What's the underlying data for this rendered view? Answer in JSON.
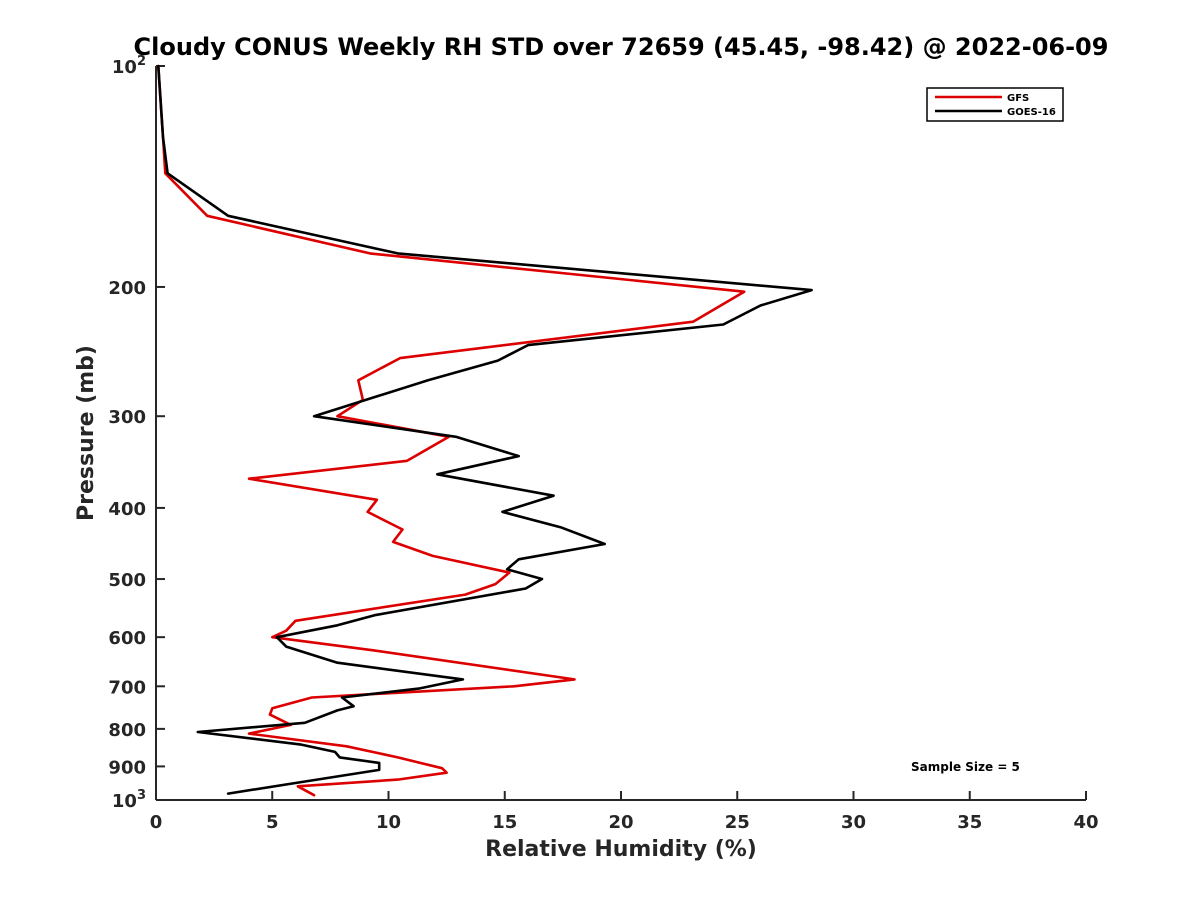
{
  "chart_data": {
    "type": "line",
    "title": "Cloudy CONUS Weekly RH STD over 72659 (45.45, -98.42) @ 2022-06-09",
    "xlabel": "Relative Humidity (%)",
    "ylabel": "Pressure (mb)",
    "xlim": [
      0,
      40
    ],
    "ylim": [
      100,
      1000
    ],
    "y_scale": "log",
    "y_reversed": true,
    "x_ticks": [
      "0",
      "5",
      "10",
      "15",
      "20",
      "25",
      "30",
      "35",
      "40"
    ],
    "y_ticks": [
      {
        "value": 100,
        "label": "10",
        "sup": "2"
      },
      {
        "value": 200,
        "label": "200",
        "sup": ""
      },
      {
        "value": 300,
        "label": "300",
        "sup": ""
      },
      {
        "value": 400,
        "label": "400",
        "sup": ""
      },
      {
        "value": 500,
        "label": "500",
        "sup": ""
      },
      {
        "value": 600,
        "label": "600",
        "sup": ""
      },
      {
        "value": 700,
        "label": "700",
        "sup": ""
      },
      {
        "value": 800,
        "label": "800",
        "sup": ""
      },
      {
        "value": 900,
        "label": "900",
        "sup": ""
      },
      {
        "value": 1000,
        "label": "10",
        "sup": "3"
      }
    ],
    "grid": false,
    "legend_position": "top-right",
    "annotation": "Sample Size = 5",
    "series": [
      {
        "name": "GFS",
        "color": "#dd0000",
        "points": [
          [
            0.1,
            100
          ],
          [
            0.3,
            125
          ],
          [
            0.4,
            140
          ],
          [
            2.2,
            160
          ],
          [
            9.2,
            180
          ],
          [
            25.3,
            203
          ],
          [
            23.1,
            223
          ],
          [
            10.5,
            250
          ],
          [
            8.7,
            268
          ],
          [
            8.9,
            285
          ],
          [
            7.8,
            300
          ],
          [
            12.6,
            320
          ],
          [
            10.8,
            345
          ],
          [
            4.0,
            365
          ],
          [
            9.5,
            390
          ],
          [
            9.1,
            405
          ],
          [
            10.6,
            428
          ],
          [
            10.2,
            445
          ],
          [
            11.9,
            465
          ],
          [
            15.2,
            490
          ],
          [
            14.6,
            508
          ],
          [
            13.3,
            525
          ],
          [
            6.0,
            570
          ],
          [
            5.6,
            588
          ],
          [
            5.0,
            600
          ],
          [
            9.3,
            625
          ],
          [
            18.0,
            685
          ],
          [
            15.4,
            700
          ],
          [
            6.7,
            725
          ],
          [
            5.0,
            750
          ],
          [
            4.9,
            765
          ],
          [
            5.8,
            790
          ],
          [
            4.0,
            812
          ],
          [
            8.2,
            845
          ],
          [
            10.4,
            875
          ],
          [
            12.3,
            905
          ],
          [
            12.5,
            918
          ],
          [
            10.4,
            938
          ],
          [
            6.1,
            958
          ],
          [
            6.8,
            985
          ]
        ]
      },
      {
        "name": "GOES-16",
        "color": "#000000",
        "points": [
          [
            0.1,
            100
          ],
          [
            0.3,
            125
          ],
          [
            0.5,
            140
          ],
          [
            3.1,
            160
          ],
          [
            10.4,
            180
          ],
          [
            28.2,
            202
          ],
          [
            26.0,
            212
          ],
          [
            24.4,
            225
          ],
          [
            16.0,
            240
          ],
          [
            14.7,
            252
          ],
          [
            11.7,
            268
          ],
          [
            6.8,
            300
          ],
          [
            12.9,
            320
          ],
          [
            15.6,
            340
          ],
          [
            12.1,
            360
          ],
          [
            17.1,
            385
          ],
          [
            14.9,
            405
          ],
          [
            17.4,
            425
          ],
          [
            19.3,
            448
          ],
          [
            15.6,
            470
          ],
          [
            15.1,
            485
          ],
          [
            16.6,
            500
          ],
          [
            15.9,
            515
          ],
          [
            9.4,
            560
          ],
          [
            7.8,
            578
          ],
          [
            5.2,
            600
          ],
          [
            5.6,
            618
          ],
          [
            7.8,
            650
          ],
          [
            13.2,
            685
          ],
          [
            11.3,
            705
          ],
          [
            8.0,
            725
          ],
          [
            8.5,
            745
          ],
          [
            7.8,
            755
          ],
          [
            6.4,
            785
          ],
          [
            1.8,
            808
          ],
          [
            6.2,
            840
          ],
          [
            7.7,
            860
          ],
          [
            7.9,
            875
          ],
          [
            9.6,
            890
          ],
          [
            9.6,
            910
          ],
          [
            6.0,
            948
          ],
          [
            3.1,
            980
          ]
        ]
      }
    ]
  }
}
